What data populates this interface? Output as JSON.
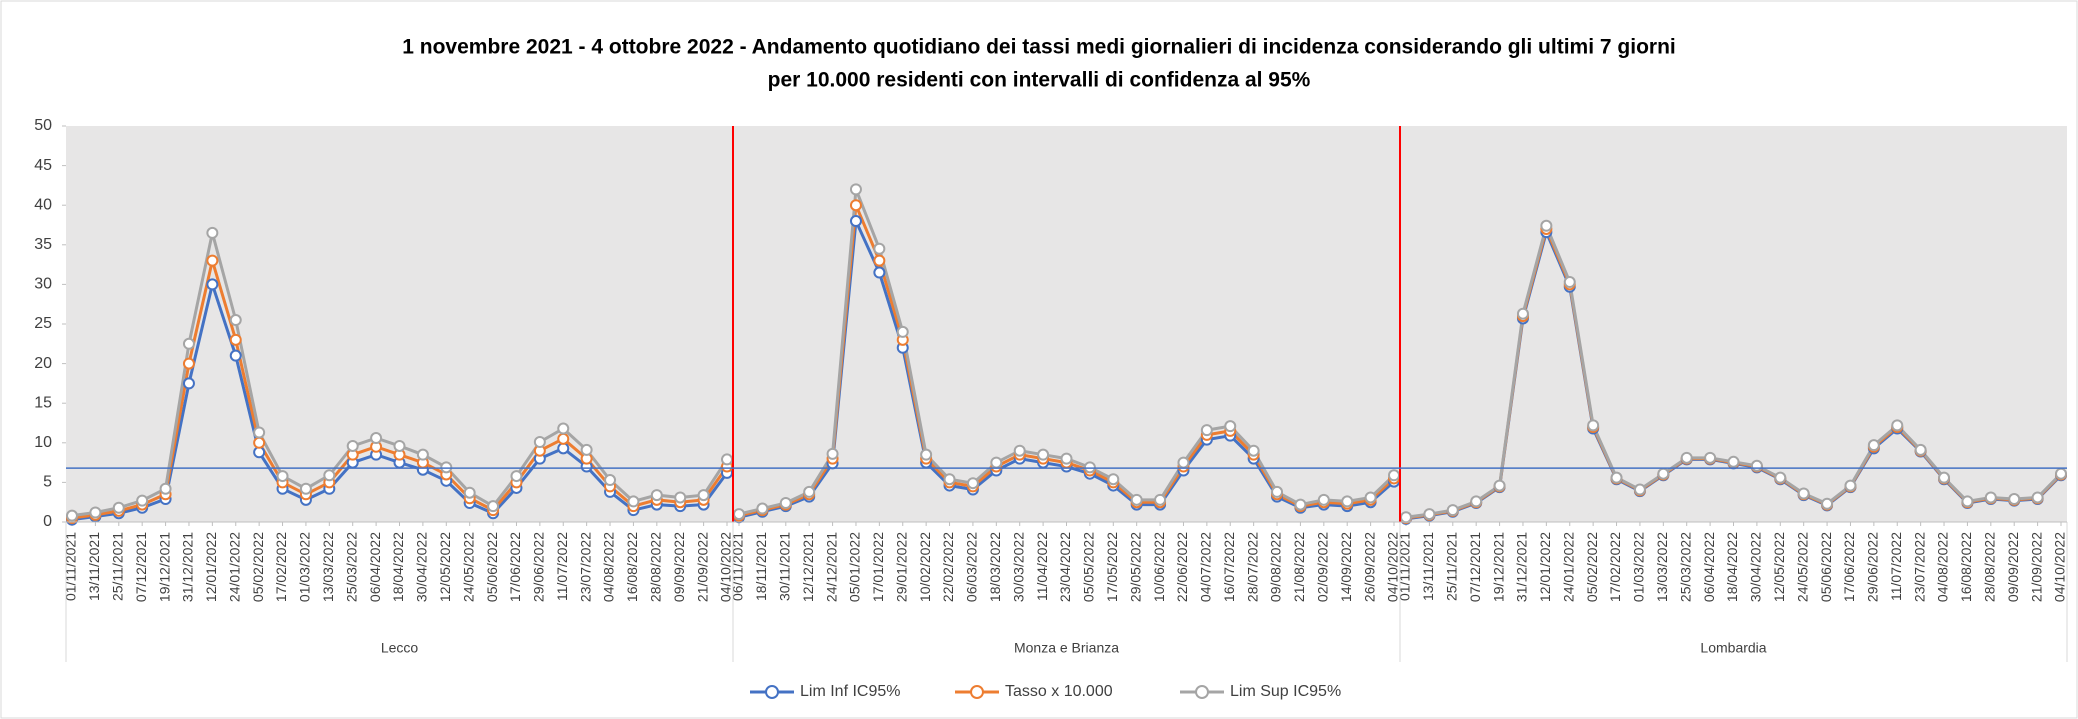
{
  "chart_data": {
    "type": "line",
    "title_lines": [
      "1 novembre 2021 - 4 ottobre 2022 - Andamento quotidiano  dei tassi medi giornalieri di incidenza considerando  gli ultimi 7 giorni",
      "per 10.000 residenti con intervalli di confidenza al 95%"
    ],
    "ylim": [
      0,
      50
    ],
    "yticks": [
      0,
      5,
      10,
      15,
      20,
      25,
      30,
      35,
      40,
      45,
      50
    ],
    "reference_line": 6.8,
    "reference_color": "#4472c4",
    "separator_color": "#ff0000",
    "series": [
      {
        "name": "Lim Inf IC95%",
        "color": "#4472c4",
        "marker_color": "#4472c4"
      },
      {
        "name": "Tasso x 10.000",
        "color": "#ed7d31",
        "marker_color": "#ed7d31"
      },
      {
        "name": "Lim Sup IC95%",
        "color": "#a5a5a5",
        "marker_color": "#a5a5a5"
      }
    ],
    "panels": [
      {
        "name": "Lecco",
        "categories": [
          "01/11/2021",
          "13/11/2021",
          "25/11/2021",
          "07/12/2021",
          "19/12/2021",
          "31/12/2021",
          "12/01/2022",
          "24/01/2022",
          "05/02/2022",
          "17/02/2022",
          "01/03/2022",
          "13/03/2022",
          "25/03/2022",
          "06/04/2022",
          "18/04/2022",
          "30/04/2022",
          "12/05/2022",
          "24/05/2022",
          "05/06/2022",
          "17/06/2022",
          "29/06/2022",
          "11/07/2022",
          "23/07/2022",
          "04/08/2022",
          "16/08/2022",
          "28/08/2022",
          "09/09/2022",
          "21/09/2022",
          "04/10/2022"
        ],
        "values": [
          [
            0.3,
            0.7,
            1.1,
            1.8,
            2.9,
            17.5,
            30,
            21,
            8.8,
            4.2,
            2.8,
            4.2,
            7.5,
            8.5,
            7.5,
            6.6,
            5.2,
            2.4,
            1.1,
            4.3,
            8,
            9.3,
            7,
            3.8,
            1.5,
            2.2,
            2,
            2.2,
            6.2
          ],
          [
            0.5,
            0.9,
            1.4,
            2.2,
            3.5,
            20,
            33,
            23,
            10,
            5,
            3.5,
            5,
            8.5,
            9.5,
            8.5,
            7.5,
            6,
            3,
            1.5,
            5,
            9,
            10.5,
            8,
            4.5,
            2,
            2.8,
            2.5,
            2.8,
            7
          ],
          [
            0.8,
            1.2,
            1.8,
            2.7,
            4.2,
            22.5,
            36.5,
            25.5,
            11.3,
            5.8,
            4.2,
            5.9,
            9.6,
            10.6,
            9.6,
            8.5,
            6.9,
            3.7,
            2,
            5.8,
            10.1,
            11.8,
            9.1,
            5.3,
            2.6,
            3.4,
            3.1,
            3.4,
            7.9
          ]
        ]
      },
      {
        "name": "Monza e Brianza",
        "categories": [
          "06/11/2021",
          "18/11/2021",
          "30/11/2021",
          "12/12/2021",
          "24/12/2021",
          "05/01/2022",
          "17/01/2022",
          "29/01/2022",
          "10/02/2022",
          "22/02/2022",
          "06/03/2022",
          "18/03/2022",
          "30/03/2022",
          "11/04/2022",
          "23/04/2022",
          "05/05/2022",
          "17/05/2022",
          "29/05/2022",
          "10/06/2022",
          "22/06/2022",
          "04/07/2022",
          "16/07/2022",
          "28/07/2022",
          "09/08/2022",
          "21/08/2022",
          "02/09/2022",
          "14/09/2022",
          "26/09/2022",
          "04/10/2022"
        ],
        "values": [
          [
            0.6,
            1.3,
            2,
            3.2,
            7.4,
            38,
            31.5,
            22,
            7.5,
            4.6,
            4.1,
            6.5,
            8,
            7.5,
            7,
            6.1,
            4.6,
            2.2,
            2.2,
            6.5,
            10.4,
            10.9,
            8,
            3.2,
            1.8,
            2.2,
            2,
            2.5,
            5.1
          ],
          [
            0.8,
            1.5,
            2.2,
            3.5,
            8,
            40,
            33,
            23,
            8,
            5,
            4.5,
            7,
            8.5,
            8,
            7.5,
            6.5,
            5,
            2.5,
            2.5,
            7,
            11,
            11.5,
            8.5,
            3.5,
            2,
            2.5,
            2.3,
            2.8,
            5.5
          ],
          [
            1,
            1.7,
            2.4,
            3.8,
            8.6,
            42,
            34.5,
            24,
            8.5,
            5.4,
            4.9,
            7.5,
            9,
            8.5,
            8,
            6.9,
            5.4,
            2.8,
            2.8,
            7.5,
            11.6,
            12.1,
            9,
            3.8,
            2.2,
            2.8,
            2.6,
            3.1,
            5.9
          ]
        ]
      },
      {
        "name": "Lombardia",
        "categories": [
          "01/11/2021",
          "13/11/2021",
          "25/11/2021",
          "07/12/2021",
          "19/12/2021",
          "31/12/2021",
          "12/01/2022",
          "24/01/2022",
          "05/02/2022",
          "17/02/2022",
          "01/03/2022",
          "13/03/2022",
          "25/03/2022",
          "06/04/2022",
          "18/04/2022",
          "30/04/2022",
          "12/05/2022",
          "24/05/2022",
          "05/06/2022",
          "17/06/2022",
          "29/06/2022",
          "11/07/2022",
          "23/07/2022",
          "04/08/2022",
          "16/08/2022",
          "28/08/2022",
          "09/09/2022",
          "21/09/2022",
          "04/10/2022"
        ],
        "values": [
          [
            0.4,
            0.8,
            1.3,
            2.4,
            4.4,
            25.7,
            36.6,
            29.7,
            11.8,
            5.4,
            3.9,
            5.9,
            7.9,
            7.9,
            7.4,
            6.9,
            5.4,
            3.4,
            2.1,
            4.4,
            9.3,
            11.8,
            8.9,
            5.4,
            2.4,
            2.9,
            2.7,
            2.9,
            5.9
          ],
          [
            0.5,
            0.9,
            1.4,
            2.5,
            4.5,
            26,
            37,
            30,
            12,
            5.5,
            4,
            6,
            8,
            8,
            7.5,
            7,
            5.5,
            3.5,
            2.2,
            4.5,
            9.5,
            12,
            9,
            5.5,
            2.5,
            3,
            2.8,
            3,
            6
          ],
          [
            0.6,
            1,
            1.5,
            2.6,
            4.6,
            26.3,
            37.4,
            30.3,
            12.2,
            5.6,
            4.1,
            6.1,
            8.1,
            8.1,
            7.6,
            7.1,
            5.6,
            3.6,
            2.3,
            4.6,
            9.7,
            12.2,
            9.1,
            5.6,
            2.6,
            3.1,
            2.9,
            3.1,
            6.1
          ]
        ]
      }
    ]
  }
}
